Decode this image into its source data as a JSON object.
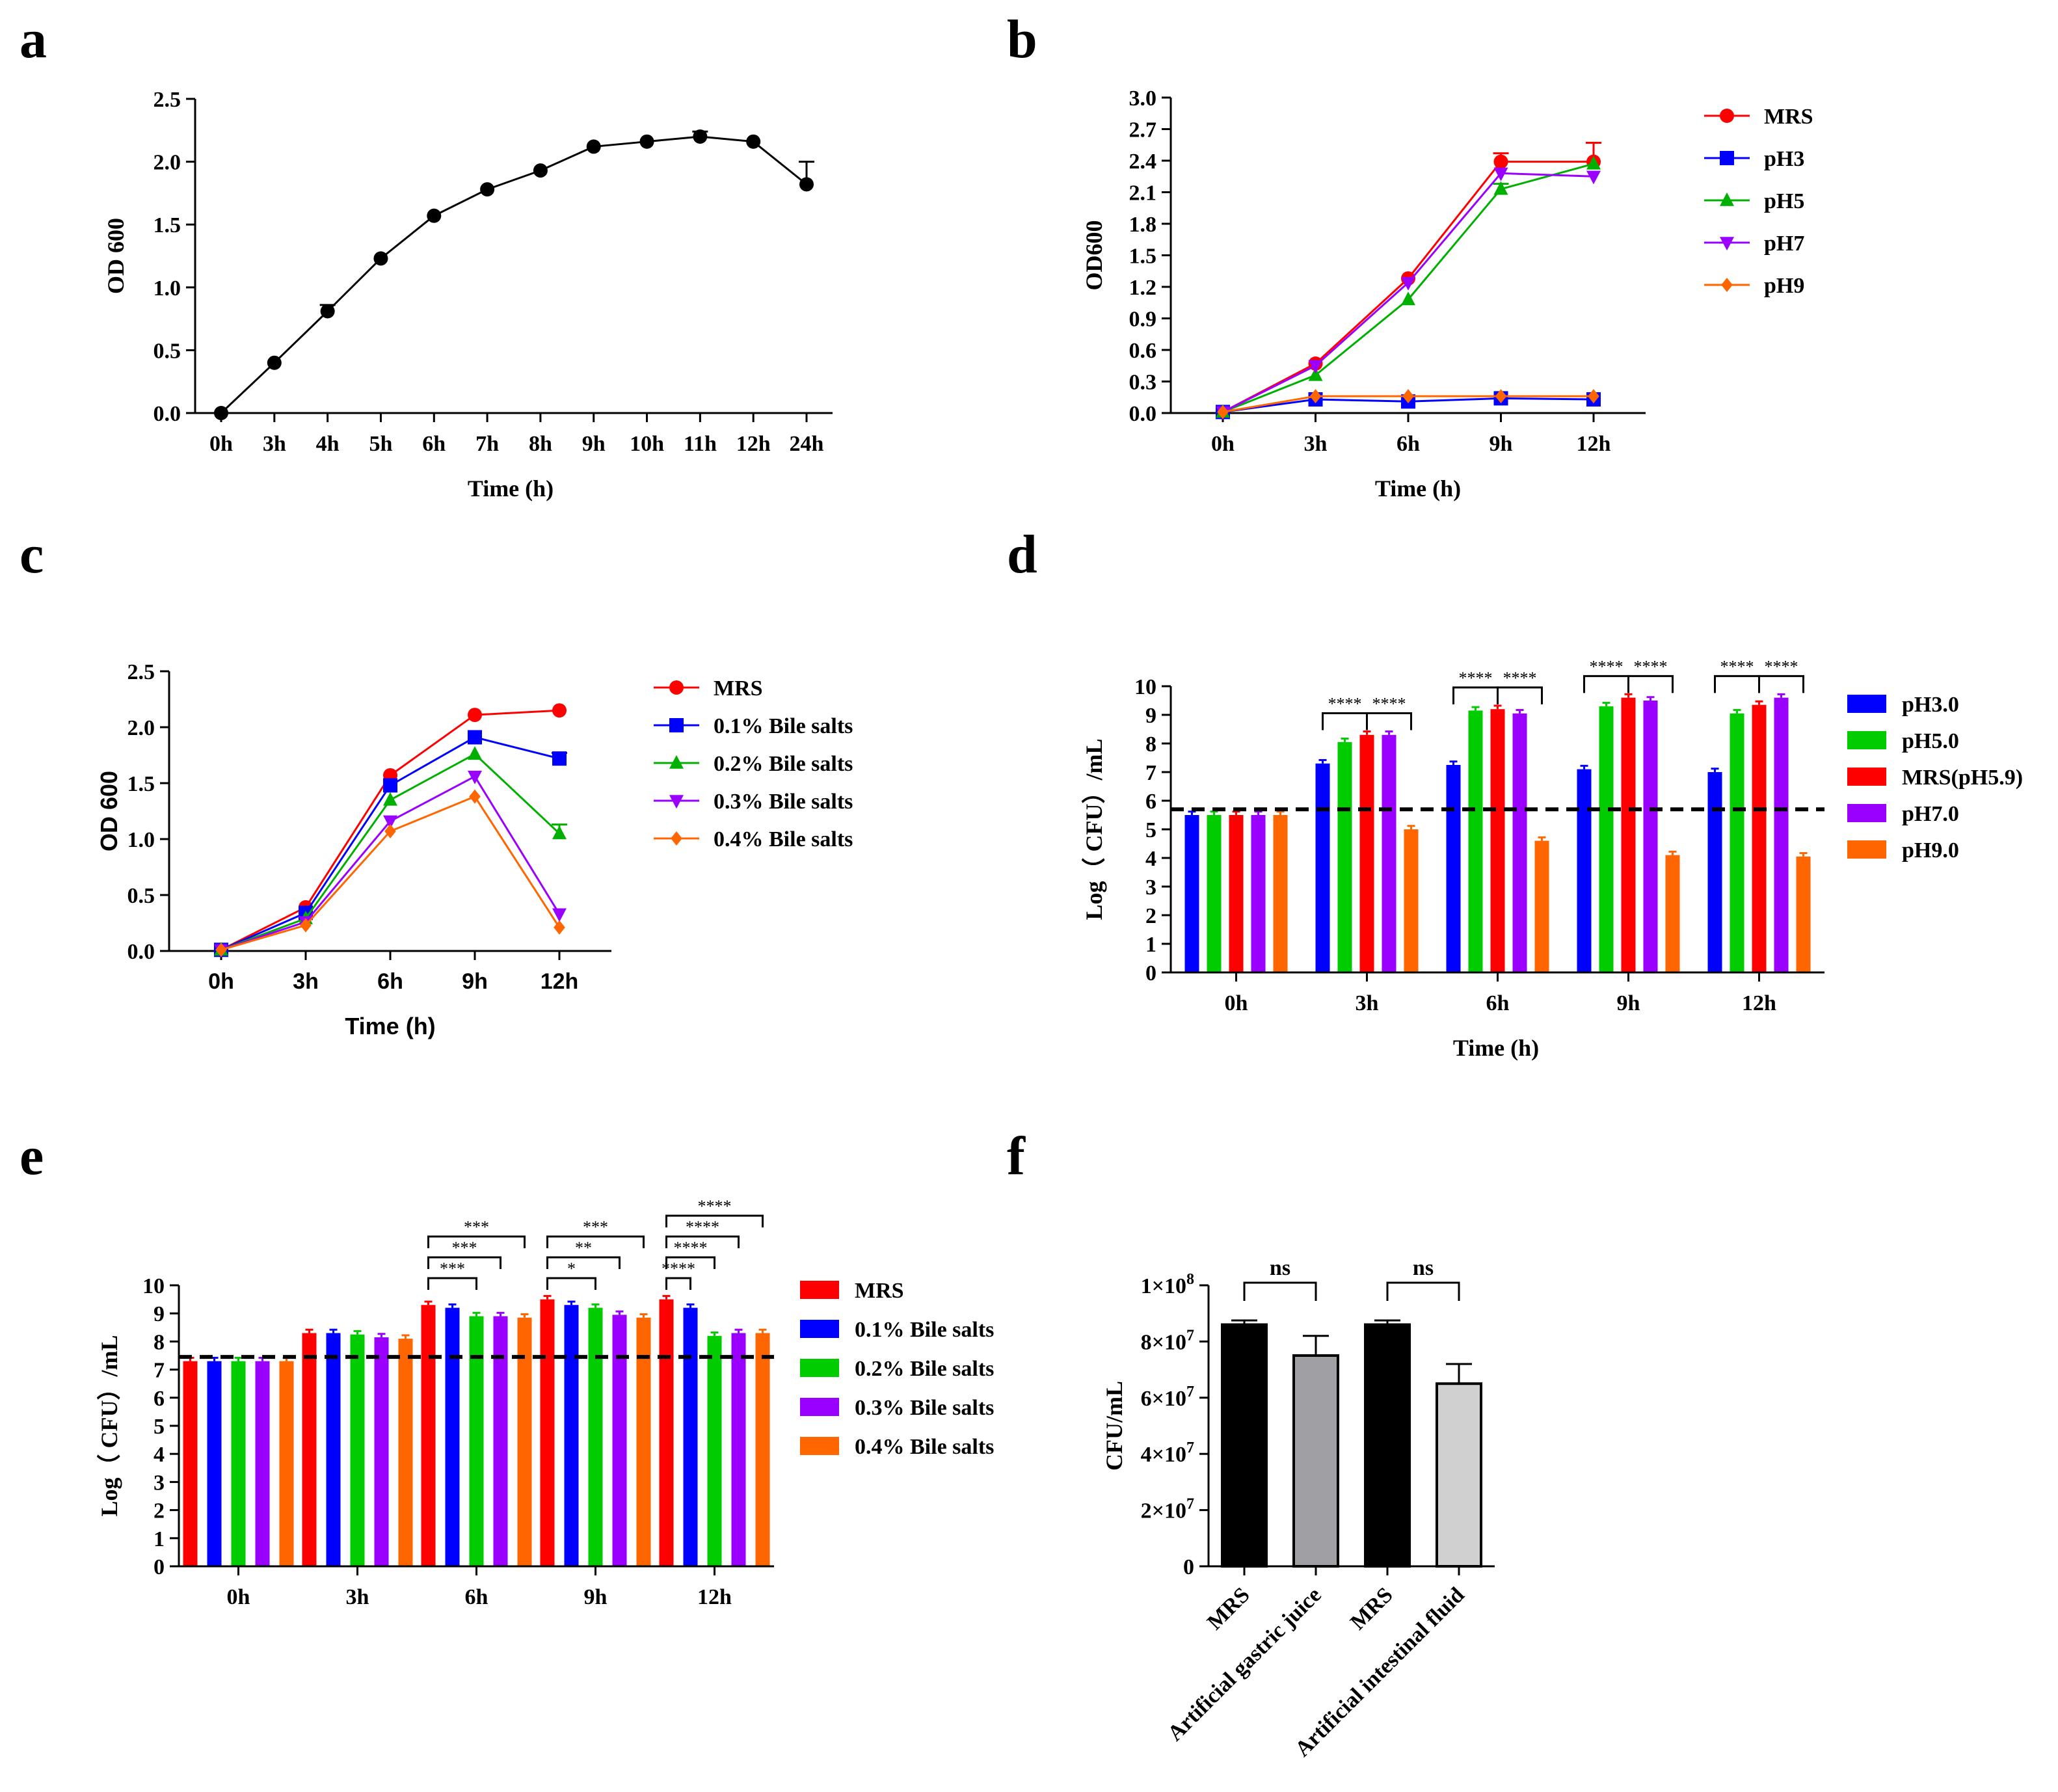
{
  "figure": {
    "panels": [
      "a",
      "b",
      "c",
      "d",
      "e",
      "f"
    ]
  },
  "chart_data": [
    {
      "id": "a",
      "type": "line",
      "title": "",
      "xlabel": "Time (h)",
      "ylabel": "OD 600",
      "categories": [
        "0h",
        "3h",
        "4h",
        "5h",
        "6h",
        "7h",
        "8h",
        "9h",
        "10h",
        "11h",
        "12h",
        "24h"
      ],
      "ylim": [
        0,
        2.5
      ],
      "yticks": [
        0.0,
        0.5,
        1.0,
        1.5,
        2.0,
        2.5
      ],
      "ytick_labels": [
        "0.0",
        "0.5",
        "1.0",
        "1.5",
        "2.0",
        "2.5"
      ],
      "series": [
        {
          "name": "OD600",
          "color": "#000000",
          "marker": "circle",
          "values": [
            0.0,
            0.4,
            0.81,
            1.23,
            1.57,
            1.78,
            1.93,
            2.12,
            2.16,
            2.2,
            2.16,
            1.82
          ],
          "errors": [
            0,
            0,
            0.05,
            0,
            0,
            0,
            0,
            0,
            0,
            0.04,
            0,
            0.18
          ]
        }
      ]
    },
    {
      "id": "b",
      "type": "line",
      "xlabel": "Time (h)",
      "ylabel": "OD600",
      "categories": [
        "0h",
        "3h",
        "6h",
        "9h",
        "12h"
      ],
      "ylim": [
        0,
        3.0
      ],
      "yticks": [
        0.0,
        0.3,
        0.6,
        0.9,
        1.2,
        1.5,
        1.8,
        2.1,
        2.4,
        2.7,
        3.0
      ],
      "ytick_labels": [
        "0.0",
        "0.3",
        "0.6",
        "0.9",
        "1.2",
        "1.5",
        "1.8",
        "2.1",
        "2.4",
        "2.7",
        "3.0"
      ],
      "legend_position": "right",
      "series": [
        {
          "name": "MRS",
          "color": "#ff0000",
          "marker": "circle",
          "values": [
            0.01,
            0.47,
            1.28,
            2.39,
            2.39
          ],
          "errors": [
            0,
            0,
            0,
            0.08,
            0.18
          ]
        },
        {
          "name": "pH3",
          "color": "#0000ff",
          "marker": "square",
          "values": [
            0.01,
            0.13,
            0.11,
            0.14,
            0.13
          ],
          "errors": [
            0,
            0,
            0,
            0,
            0
          ]
        },
        {
          "name": "pH5",
          "color": "#00b000",
          "marker": "triangle-up",
          "values": [
            0.01,
            0.36,
            1.08,
            2.13,
            2.37
          ],
          "errors": [
            0,
            0,
            0,
            0.05,
            0
          ]
        },
        {
          "name": "pH7",
          "color": "#9900ff",
          "marker": "triangle-down",
          "values": [
            0.01,
            0.45,
            1.24,
            2.28,
            2.25
          ],
          "errors": [
            0,
            0,
            0,
            0,
            0
          ]
        },
        {
          "name": "pH9",
          "color": "#ff6600",
          "marker": "diamond",
          "values": [
            0.01,
            0.16,
            0.16,
            0.16,
            0.16
          ],
          "errors": [
            0,
            0,
            0,
            0,
            0
          ]
        }
      ]
    },
    {
      "id": "c",
      "type": "line",
      "xlabel": "Time (h)",
      "ylabel": "OD 600",
      "categories": [
        "0h",
        "3h",
        "6h",
        "9h",
        "12h"
      ],
      "ylim": [
        0,
        2.5
      ],
      "yticks": [
        0.0,
        0.5,
        1.0,
        1.5,
        2.0,
        2.5
      ],
      "ytick_labels": [
        "0.0",
        "0.5",
        "1.0",
        "1.5",
        "2.0",
        "2.5"
      ],
      "legend_position": "right",
      "series": [
        {
          "name": "MRS",
          "color": "#ff0000",
          "marker": "circle",
          "values": [
            0.01,
            0.39,
            1.57,
            2.11,
            2.15
          ],
          "errors": [
            0,
            0,
            0,
            0,
            0
          ]
        },
        {
          "name": "0.1% Bile salts",
          "color": "#0000ff",
          "marker": "square",
          "values": [
            0.01,
            0.34,
            1.48,
            1.91,
            1.72
          ],
          "errors": [
            0,
            0,
            0,
            0,
            0.05
          ]
        },
        {
          "name": "0.2% Bile salts",
          "color": "#00b000",
          "marker": "triangle-up",
          "values": [
            0.01,
            0.29,
            1.35,
            1.76,
            1.05
          ],
          "errors": [
            0,
            0,
            0,
            0,
            0.08
          ]
        },
        {
          "name": "0.3% Bile salts",
          "color": "#9900ff",
          "marker": "triangle-down",
          "values": [
            0.01,
            0.26,
            1.16,
            1.56,
            0.33
          ],
          "errors": [
            0,
            0,
            0,
            0,
            0
          ]
        },
        {
          "name": "0.4% Bile salts",
          "color": "#ff6600",
          "marker": "diamond",
          "values": [
            0.01,
            0.23,
            1.07,
            1.38,
            0.21
          ],
          "errors": [
            0,
            0,
            0,
            0,
            0
          ]
        }
      ]
    },
    {
      "id": "d",
      "type": "bar",
      "xlabel": "Time (h)",
      "ylabel": "Log（ CFU）/mL",
      "categories": [
        "0h",
        "3h",
        "6h",
        "9h",
        "12h"
      ],
      "ylim": [
        0,
        10
      ],
      "yticks": [
        0,
        1,
        2,
        3,
        4,
        5,
        6,
        7,
        8,
        9,
        10
      ],
      "ytick_labels": [
        "0",
        "1",
        "2",
        "3",
        "4",
        "5",
        "6",
        "7",
        "8",
        "9",
        "10"
      ],
      "reference_line": 5.7,
      "legend_position": "right",
      "series": [
        {
          "name": "pH3.0",
          "color": "#0000ff",
          "values": [
            5.5,
            7.3,
            7.25,
            7.1,
            7.0
          ]
        },
        {
          "name": "pH5.0",
          "color": "#00cc00",
          "values": [
            5.5,
            8.05,
            9.15,
            9.3,
            9.05
          ]
        },
        {
          "name": "MRS(pH5.9)",
          "color": "#ff0000",
          "values": [
            5.5,
            8.3,
            9.2,
            9.6,
            9.35
          ]
        },
        {
          "name": "pH7.0",
          "color": "#9900ff",
          "values": [
            5.5,
            8.3,
            9.05,
            9.5,
            9.6
          ]
        },
        {
          "name": "pH9.0",
          "color": "#ff6600",
          "values": [
            5.5,
            5.0,
            4.6,
            4.1,
            4.05
          ]
        }
      ],
      "significance": [
        {
          "group": 1,
          "from": 2,
          "to": 0,
          "level": 0,
          "label": "****"
        },
        {
          "group": 1,
          "from": 2,
          "to": 4,
          "level": 0,
          "label": "****"
        },
        {
          "group": 2,
          "from": 2,
          "to": 0,
          "level": 0,
          "label": "****"
        },
        {
          "group": 2,
          "from": 2,
          "to": 4,
          "level": 0,
          "label": "****"
        },
        {
          "group": 3,
          "from": 2,
          "to": 0,
          "level": 0,
          "label": "****"
        },
        {
          "group": 3,
          "from": 2,
          "to": 4,
          "level": 0,
          "label": "****"
        },
        {
          "group": 4,
          "from": 2,
          "to": 0,
          "level": 0,
          "label": "****"
        },
        {
          "group": 4,
          "from": 2,
          "to": 4,
          "level": 0,
          "label": "****"
        }
      ]
    },
    {
      "id": "e",
      "type": "bar",
      "xlabel": "",
      "ylabel": "Log（ CFU）/mL",
      "categories": [
        "0h",
        "3h",
        "6h",
        "9h",
        "12h"
      ],
      "ylim": [
        0,
        10
      ],
      "yticks": [
        0,
        1,
        2,
        3,
        4,
        5,
        6,
        7,
        8,
        9,
        10
      ],
      "ytick_labels": [
        "0",
        "1",
        "2",
        "3",
        "4",
        "5",
        "6",
        "7",
        "8",
        "9",
        "10"
      ],
      "reference_line": 7.45,
      "legend_position": "right",
      "series": [
        {
          "name": "MRS",
          "color": "#ff0000",
          "values": [
            7.3,
            8.3,
            9.3,
            9.5,
            9.5
          ]
        },
        {
          "name": "0.1% Bile salts",
          "color": "#0000ff",
          "values": [
            7.3,
            8.3,
            9.2,
            9.3,
            9.2
          ]
        },
        {
          "name": "0.2% Bile salts",
          "color": "#00cc00",
          "values": [
            7.3,
            8.25,
            8.9,
            9.2,
            8.2
          ]
        },
        {
          "name": "0.3% Bile salts",
          "color": "#9900ff",
          "values": [
            7.3,
            8.15,
            8.9,
            8.95,
            8.3
          ]
        },
        {
          "name": "0.4% Bile salts",
          "color": "#ff6600",
          "values": [
            7.3,
            8.1,
            8.85,
            8.85,
            8.3
          ]
        }
      ],
      "significance": [
        {
          "group": 2,
          "from": 0,
          "to": 2,
          "level": 0,
          "label": "***"
        },
        {
          "group": 2,
          "from": 0,
          "to": 3,
          "level": 1,
          "label": "***"
        },
        {
          "group": 2,
          "from": 0,
          "to": 4,
          "level": 2,
          "label": "***"
        },
        {
          "group": 3,
          "from": 0,
          "to": 2,
          "level": 0,
          "label": "*"
        },
        {
          "group": 3,
          "from": 0,
          "to": 3,
          "level": 1,
          "label": "**"
        },
        {
          "group": 3,
          "from": 0,
          "to": 4,
          "level": 2,
          "label": "***"
        },
        {
          "group": 4,
          "from": 0,
          "to": 1,
          "level": 0,
          "label": "****"
        },
        {
          "group": 4,
          "from": 0,
          "to": 2,
          "level": 1,
          "label": "****"
        },
        {
          "group": 4,
          "from": 0,
          "to": 3,
          "level": 2,
          "label": "****"
        },
        {
          "group": 4,
          "from": 0,
          "to": 4,
          "level": 3,
          "label": "****"
        }
      ]
    },
    {
      "id": "f",
      "type": "bar",
      "xlabel": "",
      "ylabel": "CFU/mL",
      "categories": [
        "MRS",
        "Artificial gastric juice",
        "MRS",
        "Artificial intestinal fluid"
      ],
      "ylim": [
        0,
        100000000
      ],
      "yticks": [
        0,
        20000000,
        40000000,
        60000000,
        80000000,
        100000000
      ],
      "ytick_labels": [
        {
          "base": "0",
          "exp": ""
        },
        {
          "base": "2×10",
          "exp": "7"
        },
        {
          "base": "4×10",
          "exp": "7"
        },
        {
          "base": "6×10",
          "exp": "7"
        },
        {
          "base": "8×10",
          "exp": "7"
        },
        {
          "base": "1×10",
          "exp": "8"
        }
      ],
      "series": [
        {
          "name": "CFU/mL",
          "values": [
            86000000,
            75000000,
            86000000,
            65000000
          ],
          "errors": [
            1500000,
            7000000,
            1500000,
            7000000
          ],
          "colors": [
            "#000000",
            "#a0a0a4",
            "#000000",
            "#d0d0d0"
          ]
        }
      ],
      "significance": [
        {
          "from": 0,
          "to": 1,
          "label": "ns"
        },
        {
          "from": 2,
          "to": 3,
          "label": "ns"
        }
      ]
    }
  ]
}
